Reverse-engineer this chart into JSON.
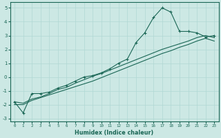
{
  "xlabel": "Humidex (Indice chaleur)",
  "ylabel": "",
  "bg_color": "#cce8e4",
  "grid_color": "#b0d8d4",
  "line_color": "#1a6655",
  "xlim": [
    -0.5,
    23.5
  ],
  "ylim": [
    -3.2,
    5.4
  ],
  "xticks": [
    0,
    1,
    2,
    3,
    4,
    5,
    6,
    7,
    8,
    9,
    10,
    11,
    12,
    13,
    14,
    15,
    16,
    17,
    18,
    19,
    20,
    21,
    22,
    23
  ],
  "yticks": [
    -3,
    -2,
    -1,
    0,
    1,
    2,
    3,
    4,
    5
  ],
  "curve1_x": [
    0,
    1,
    2,
    3,
    4,
    5,
    6,
    7,
    8,
    9,
    10,
    11,
    12,
    13,
    14,
    15,
    16,
    17,
    18,
    19,
    20,
    21,
    22,
    23
  ],
  "curve1_y": [
    -1.8,
    -2.6,
    -1.2,
    -1.2,
    -1.1,
    -0.8,
    -0.6,
    -0.3,
    0.0,
    0.1,
    0.3,
    0.6,
    1.0,
    1.3,
    2.5,
    3.2,
    4.3,
    5.0,
    4.7,
    3.3,
    3.3,
    3.2,
    2.9,
    3.0
  ],
  "curve2_x": [
    0,
    1,
    2,
    3,
    4,
    5,
    6,
    7,
    8,
    9,
    10,
    11,
    12,
    13,
    14,
    15,
    16,
    17,
    18,
    19,
    20,
    21,
    22,
    23
  ],
  "curve2_y": [
    -2.0,
    -2.0,
    -1.7,
    -1.5,
    -1.3,
    -1.1,
    -0.9,
    -0.7,
    -0.5,
    -0.3,
    -0.05,
    0.2,
    0.45,
    0.7,
    0.95,
    1.2,
    1.45,
    1.7,
    1.9,
    2.15,
    2.35,
    2.6,
    2.8,
    2.6
  ],
  "curve3_x": [
    0,
    1,
    2,
    3,
    4,
    5,
    6,
    7,
    8,
    9,
    10,
    11,
    12,
    13,
    14,
    15,
    16,
    17,
    18,
    19,
    20,
    21,
    22,
    23
  ],
  "curve3_y": [
    -1.8,
    -1.9,
    -1.6,
    -1.45,
    -1.2,
    -0.9,
    -0.75,
    -0.45,
    -0.2,
    0.05,
    0.25,
    0.5,
    0.75,
    1.0,
    1.25,
    1.5,
    1.75,
    2.0,
    2.2,
    2.4,
    2.6,
    2.85,
    3.0,
    2.85
  ]
}
